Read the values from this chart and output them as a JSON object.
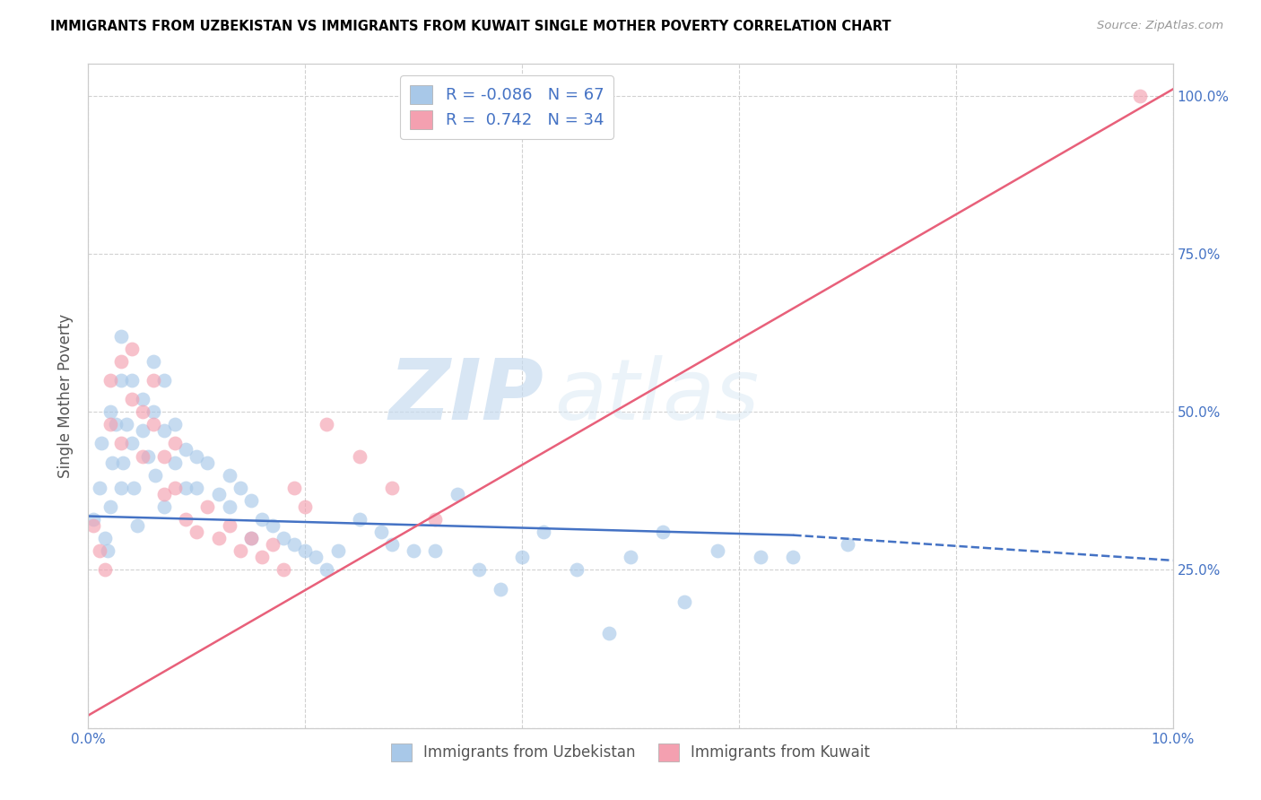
{
  "title": "IMMIGRANTS FROM UZBEKISTAN VS IMMIGRANTS FROM KUWAIT SINGLE MOTHER POVERTY CORRELATION CHART",
  "source": "Source: ZipAtlas.com",
  "ylabel": "Single Mother Poverty",
  "xlim": [
    0.0,
    0.1
  ],
  "ylim": [
    0.0,
    1.05
  ],
  "uzbekistan_color": "#A8C8E8",
  "kuwait_color": "#F4A0B0",
  "uzbekistan_R": -0.086,
  "uzbekistan_N": 67,
  "kuwait_R": 0.742,
  "kuwait_N": 34,
  "uzbekistan_line_color": "#4472C4",
  "kuwait_line_color": "#E8607A",
  "legend_label_uzbekistan": "Immigrants from Uzbekistan",
  "legend_label_kuwait": "Immigrants from Kuwait",
  "watermark_zip": "ZIP",
  "watermark_atlas": "atlas",
  "uzbekistan_x": [
    0.0005,
    0.001,
    0.0012,
    0.0015,
    0.0018,
    0.002,
    0.002,
    0.0022,
    0.0025,
    0.003,
    0.003,
    0.003,
    0.0032,
    0.0035,
    0.004,
    0.004,
    0.0042,
    0.0045,
    0.005,
    0.005,
    0.0055,
    0.006,
    0.006,
    0.0062,
    0.007,
    0.007,
    0.007,
    0.008,
    0.008,
    0.009,
    0.009,
    0.01,
    0.01,
    0.011,
    0.012,
    0.013,
    0.013,
    0.014,
    0.015,
    0.015,
    0.016,
    0.017,
    0.018,
    0.019,
    0.02,
    0.021,
    0.022,
    0.023,
    0.025,
    0.027,
    0.028,
    0.03,
    0.032,
    0.034,
    0.036,
    0.038,
    0.04,
    0.042,
    0.045,
    0.048,
    0.05,
    0.053,
    0.055,
    0.058,
    0.062,
    0.065,
    0.07
  ],
  "uzbekistan_y": [
    0.33,
    0.38,
    0.45,
    0.3,
    0.28,
    0.35,
    0.5,
    0.42,
    0.48,
    0.62,
    0.55,
    0.38,
    0.42,
    0.48,
    0.55,
    0.45,
    0.38,
    0.32,
    0.52,
    0.47,
    0.43,
    0.58,
    0.5,
    0.4,
    0.55,
    0.47,
    0.35,
    0.48,
    0.42,
    0.44,
    0.38,
    0.43,
    0.38,
    0.42,
    0.37,
    0.4,
    0.35,
    0.38,
    0.36,
    0.3,
    0.33,
    0.32,
    0.3,
    0.29,
    0.28,
    0.27,
    0.25,
    0.28,
    0.33,
    0.31,
    0.29,
    0.28,
    0.28,
    0.37,
    0.25,
    0.22,
    0.27,
    0.31,
    0.25,
    0.15,
    0.27,
    0.31,
    0.2,
    0.28,
    0.27,
    0.27,
    0.29
  ],
  "kuwait_x": [
    0.0005,
    0.001,
    0.0015,
    0.002,
    0.002,
    0.003,
    0.003,
    0.004,
    0.004,
    0.005,
    0.005,
    0.006,
    0.006,
    0.007,
    0.007,
    0.008,
    0.008,
    0.009,
    0.01,
    0.011,
    0.012,
    0.013,
    0.014,
    0.015,
    0.016,
    0.017,
    0.018,
    0.019,
    0.02,
    0.022,
    0.025,
    0.028,
    0.032,
    0.097
  ],
  "kuwait_y": [
    0.32,
    0.28,
    0.25,
    0.55,
    0.48,
    0.58,
    0.45,
    0.6,
    0.52,
    0.5,
    0.43,
    0.55,
    0.48,
    0.43,
    0.37,
    0.45,
    0.38,
    0.33,
    0.31,
    0.35,
    0.3,
    0.32,
    0.28,
    0.3,
    0.27,
    0.29,
    0.25,
    0.38,
    0.35,
    0.48,
    0.43,
    0.38,
    0.33,
    1.0
  ],
  "blue_line_x0": 0.0,
  "blue_line_y0": 0.335,
  "blue_line_x1": 0.065,
  "blue_line_y1": 0.305,
  "blue_line_x1_dash": 0.1,
  "blue_line_y1_dash": 0.265,
  "pink_line_x0": 0.0,
  "pink_line_y0": 0.02,
  "pink_line_x1": 0.1,
  "pink_line_y1": 1.01
}
